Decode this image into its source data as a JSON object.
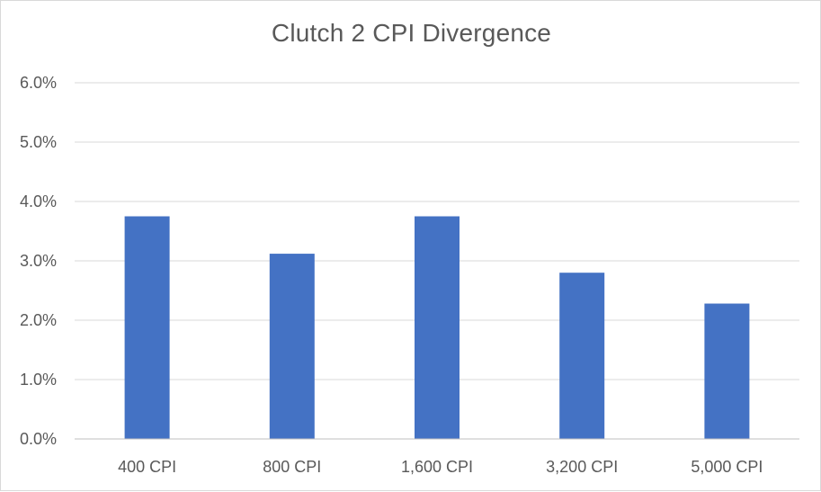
{
  "chart_data": {
    "type": "bar",
    "title": "Clutch 2 CPI Divergence",
    "xlabel": "",
    "ylabel": "",
    "categories": [
      "400 CPI",
      "800 CPI",
      "1,600 CPI",
      "3,200 CPI",
      "5,000 CPI"
    ],
    "values": [
      3.75,
      3.12,
      3.75,
      2.8,
      2.28
    ],
    "value_unit": "%",
    "ylim": [
      0,
      6
    ],
    "yticks": [
      "0.0%",
      "1.0%",
      "2.0%",
      "3.0%",
      "4.0%",
      "5.0%",
      "6.0%"
    ],
    "grid": true,
    "legend": "none",
    "bar_color": "#4472C4"
  }
}
